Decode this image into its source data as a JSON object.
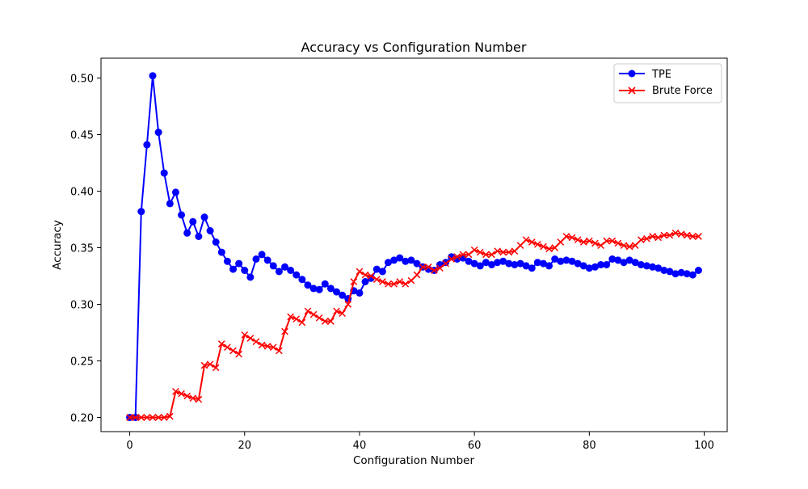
{
  "chart_data": {
    "type": "line",
    "title": "Accuracy vs Configuration Number",
    "xlabel": "Configuration Number",
    "ylabel": "Accuracy",
    "xlim": [
      -5,
      104
    ],
    "ylim": [
      0.1875,
      0.5175
    ],
    "xticks": [
      0,
      20,
      40,
      60,
      80,
      100
    ],
    "yticks": [
      0.2,
      0.25,
      0.3,
      0.35,
      0.4,
      0.45,
      0.5
    ],
    "xtick_labels": [
      "0",
      "20",
      "40",
      "60",
      "80",
      "100"
    ],
    "ytick_labels": [
      "0.20",
      "0.25",
      "0.30",
      "0.35",
      "0.40",
      "0.45",
      "0.50"
    ],
    "grid": false,
    "legend_position": "top-right",
    "x": [
      0,
      1,
      2,
      3,
      4,
      5,
      6,
      7,
      8,
      9,
      10,
      11,
      12,
      13,
      14,
      15,
      16,
      17,
      18,
      19,
      20,
      21,
      22,
      23,
      24,
      25,
      26,
      27,
      28,
      29,
      30,
      31,
      32,
      33,
      34,
      35,
      36,
      37,
      38,
      39,
      40,
      41,
      42,
      43,
      44,
      45,
      46,
      47,
      48,
      49,
      50,
      51,
      52,
      53,
      54,
      55,
      56,
      57,
      58,
      59,
      60,
      61,
      62,
      63,
      64,
      65,
      66,
      67,
      68,
      69,
      70,
      71,
      72,
      73,
      74,
      75,
      76,
      77,
      78,
      79,
      80,
      81,
      82,
      83,
      84,
      85,
      86,
      87,
      88,
      89,
      90,
      91,
      92,
      93,
      94,
      95,
      96,
      97,
      98,
      99
    ],
    "series": [
      {
        "name": "TPE",
        "color": "#0000ff",
        "marker": "circle",
        "values": [
          0.2,
          0.2,
          0.382,
          0.441,
          0.502,
          0.452,
          0.416,
          0.389,
          0.399,
          0.379,
          0.363,
          0.373,
          0.36,
          0.377,
          0.365,
          0.355,
          0.346,
          0.338,
          0.331,
          0.336,
          0.33,
          0.324,
          0.34,
          0.344,
          0.339,
          0.334,
          0.329,
          0.333,
          0.33,
          0.326,
          0.322,
          0.317,
          0.314,
          0.313,
          0.318,
          0.314,
          0.311,
          0.308,
          0.305,
          0.312,
          0.31,
          0.32,
          0.323,
          0.331,
          0.329,
          0.337,
          0.339,
          0.341,
          0.338,
          0.339,
          0.336,
          0.333,
          0.331,
          0.33,
          0.335,
          0.337,
          0.342,
          0.34,
          0.341,
          0.338,
          0.336,
          0.334,
          0.337,
          0.335,
          0.337,
          0.338,
          0.336,
          0.335,
          0.336,
          0.334,
          0.332,
          0.337,
          0.336,
          0.334,
          0.34,
          0.338,
          0.339,
          0.338,
          0.336,
          0.334,
          0.332,
          0.333,
          0.335,
          0.335,
          0.34,
          0.339,
          0.337,
          0.339,
          0.337,
          0.335,
          0.334,
          0.333,
          0.332,
          0.33,
          0.329,
          0.327,
          0.328,
          0.327,
          0.326,
          0.33
        ]
      },
      {
        "name": "Brute Force",
        "color": "#ff0000",
        "marker": "x",
        "values": [
          0.2,
          0.2,
          0.2,
          0.2,
          0.2,
          0.2,
          0.2,
          0.201,
          0.223,
          0.221,
          0.219,
          0.217,
          0.216,
          0.246,
          0.247,
          0.244,
          0.265,
          0.262,
          0.259,
          0.256,
          0.273,
          0.27,
          0.267,
          0.264,
          0.263,
          0.262,
          0.259,
          0.276,
          0.289,
          0.287,
          0.284,
          0.294,
          0.291,
          0.288,
          0.285,
          0.285,
          0.294,
          0.292,
          0.3,
          0.32,
          0.329,
          0.326,
          0.325,
          0.322,
          0.32,
          0.318,
          0.318,
          0.32,
          0.318,
          0.321,
          0.326,
          0.333,
          0.333,
          0.33,
          0.332,
          0.336,
          0.34,
          0.342,
          0.344,
          0.344,
          0.348,
          0.346,
          0.344,
          0.344,
          0.347,
          0.346,
          0.346,
          0.347,
          0.352,
          0.357,
          0.355,
          0.353,
          0.351,
          0.349,
          0.35,
          0.355,
          0.36,
          0.359,
          0.357,
          0.355,
          0.356,
          0.354,
          0.352,
          0.356,
          0.356,
          0.354,
          0.352,
          0.351,
          0.352,
          0.357,
          0.358,
          0.36,
          0.359,
          0.361,
          0.361,
          0.363,
          0.362,
          0.361,
          0.36,
          0.36
        ]
      }
    ]
  }
}
